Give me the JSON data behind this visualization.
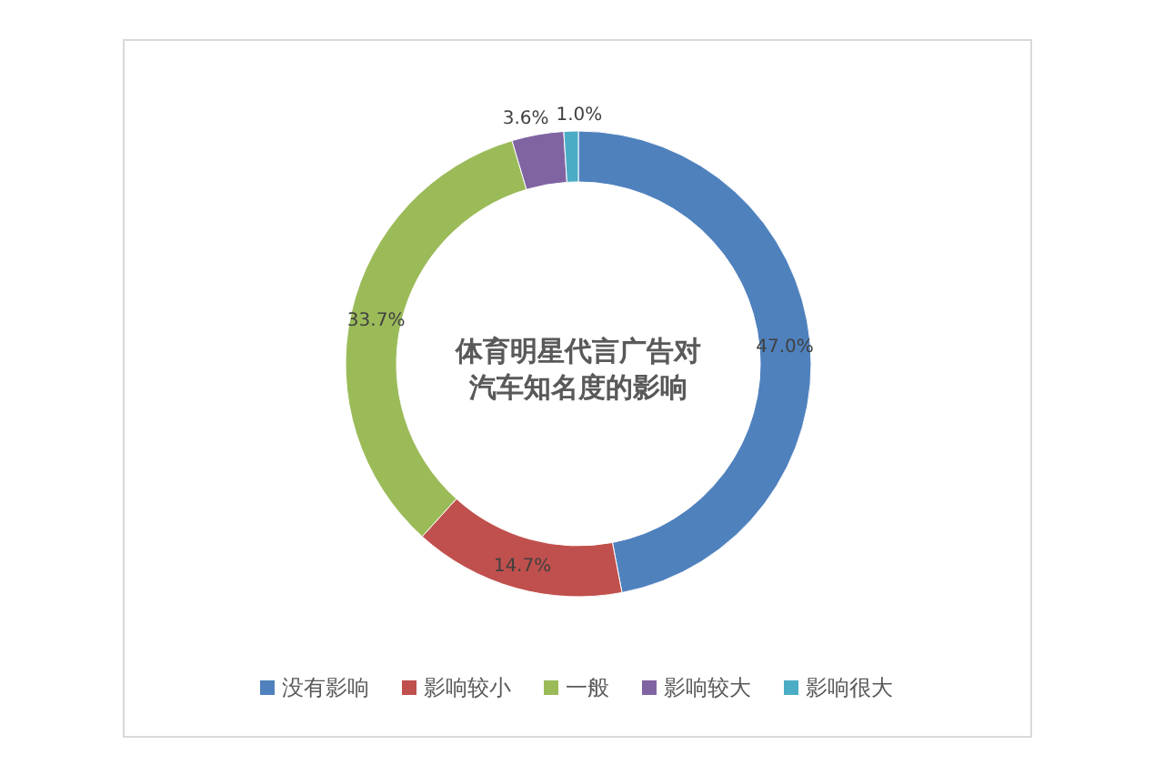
{
  "chart_data": {
    "type": "donut",
    "title": "体育明星代言广告对汽车知名度的影响",
    "categories": [
      "没有影响",
      "影响较小",
      "一般",
      "影响较大",
      "影响很大"
    ],
    "values": [
      47.0,
      14.7,
      33.7,
      3.6,
      1.0
    ],
    "value_labels": [
      "47.0%",
      "14.7%",
      "33.7%",
      "3.6%",
      "1.0%"
    ],
    "colors": [
      "#4f81bd",
      "#c0504d",
      "#9bbb59",
      "#8064a2",
      "#4bacc6"
    ],
    "legend": "bottom"
  }
}
